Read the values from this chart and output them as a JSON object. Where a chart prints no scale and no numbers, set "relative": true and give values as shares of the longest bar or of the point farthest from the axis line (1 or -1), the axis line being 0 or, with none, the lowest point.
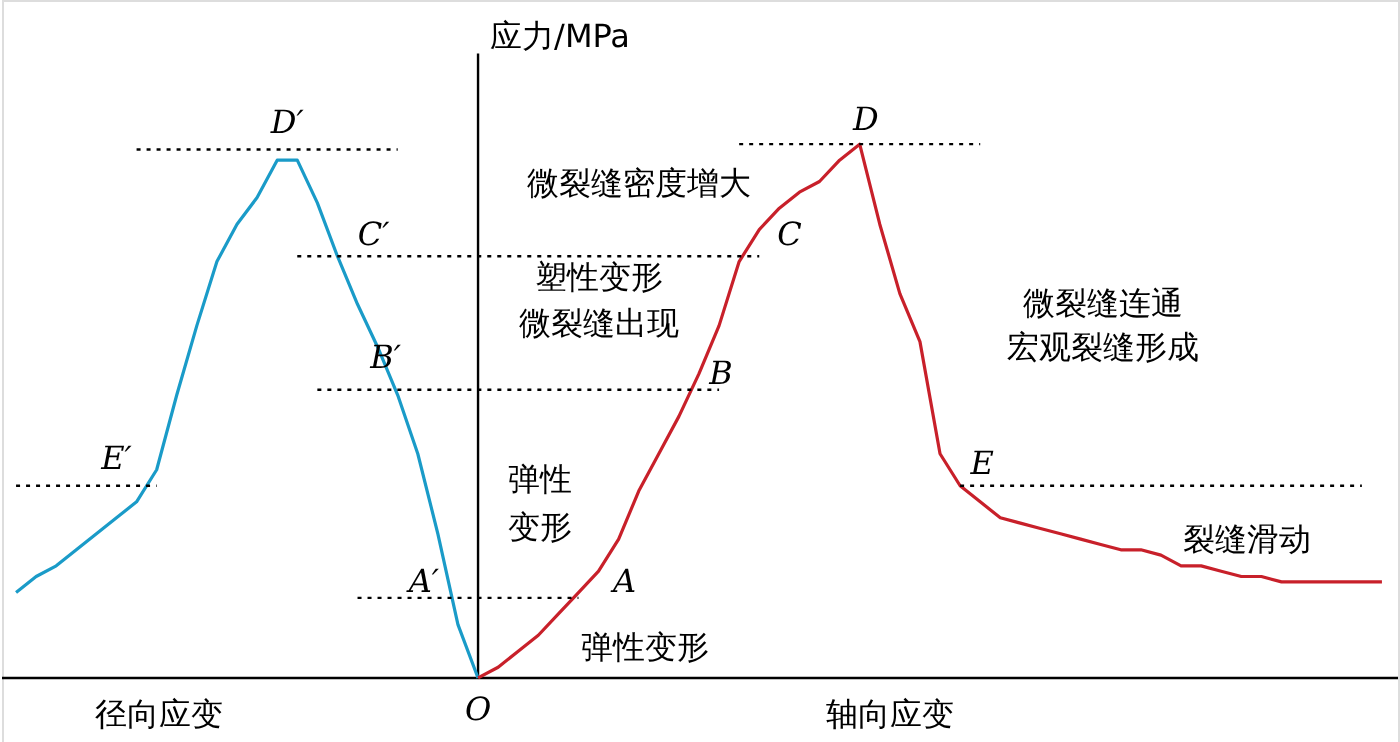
{
  "chart_data": {
    "type": "line",
    "relative": true,
    "ylabel": "应力/MPa",
    "categories": [
      null,
      null,
      null,
      null,
      null,
      null,
      null,
      null,
      null,
      null,
      null,
      null,
      null,
      null,
      null,
      null,
      null,
      null,
      null,
      null,
      null,
      null,
      null,
      null,
      null,
      null,
      null,
      null,
      null,
      null,
      null,
      null,
      null,
      null,
      null,
      null,
      null,
      null,
      null,
      null,
      null,
      null,
      null,
      null,
      null,
      null,
      null,
      null,
      null,
      null,
      null,
      null,
      null,
      null,
      null,
      null,
      null,
      null,
      null,
      null,
      null,
      null,
      null,
      null,
      null,
      null,
      null,
      null,
      null
    ],
    "series": [
      {
        "color": "#1a9bc8",
        "values": [
          0.16,
          0.19,
          0.21,
          0.24,
          0.27,
          0.3,
          0.33,
          0.39,
          0.53,
          0.66,
          0.78,
          0.85,
          0.9,
          0.97,
          0.97,
          0.89,
          0.79,
          0.7,
          0.62,
          0.53,
          0.42,
          0.27,
          0.1,
          0,
          null,
          null,
          null,
          null,
          null,
          null,
          null,
          null,
          null,
          null,
          null,
          null,
          null,
          null,
          null,
          null,
          null,
          null,
          null,
          null,
          null,
          null,
          null,
          null,
          null,
          null,
          null,
          null,
          null,
          null,
          null,
          null,
          null,
          null,
          null,
          null,
          null,
          null,
          null,
          null,
          null,
          null,
          null,
          null,
          null
        ]
      },
      {
        "color": "#c8202a",
        "values": [
          null,
          null,
          null,
          null,
          null,
          null,
          null,
          null,
          null,
          null,
          null,
          null,
          null,
          null,
          null,
          null,
          null,
          null,
          null,
          null,
          null,
          null,
          null,
          0,
          0.02,
          0.05,
          0.08,
          0.12,
          0.16,
          0.2,
          0.26,
          0.35,
          0.42,
          0.49,
          0.57,
          0.66,
          0.78,
          0.84,
          0.88,
          0.91,
          0.93,
          0.97,
          1.0,
          0.85,
          0.72,
          0.63,
          0.42,
          0.36,
          0.33,
          0.3,
          0.29,
          0.28,
          0.27,
          0.26,
          0.25,
          0.24,
          0.24,
          0.23,
          0.21,
          0.21,
          0.2,
          0.19,
          0.19,
          0.18,
          0.18,
          0.18,
          0.18,
          0.18,
          0.18
        ]
      },
      {
        "color": "#000000",
        "line_style": "dotted",
        "values": [
          null,
          null,
          null,
          null,
          null,
          null,
          0.99,
          0.99,
          0.99,
          0.99,
          0.99,
          0.99,
          0.99,
          0.99,
          0.99,
          0.99,
          0.99,
          0.99,
          0.99,
          0.99,
          null,
          null,
          null,
          null,
          null,
          null,
          null,
          null,
          null,
          null,
          null,
          null,
          null,
          null,
          null,
          null,
          null,
          null,
          null,
          null,
          null,
          null,
          null,
          null,
          null,
          null,
          null,
          null,
          null,
          null,
          null,
          null,
          null,
          null,
          null,
          null,
          null,
          null,
          null,
          null,
          null,
          null,
          null,
          null,
          null,
          null,
          null,
          null,
          null
        ]
      },
      {
        "color": "#000000",
        "line_style": "dotted",
        "values": [
          null,
          null,
          null,
          null,
          null,
          null,
          null,
          null,
          null,
          null,
          null,
          null,
          null,
          null,
          null,
          null,
          null,
          null,
          null,
          null,
          null,
          null,
          null,
          null,
          null,
          null,
          null,
          null,
          null,
          null,
          null,
          null,
          null,
          null,
          null,
          null,
          1.0,
          1.0,
          1.0,
          1.0,
          1.0,
          1.0,
          1.0,
          1.0,
          1.0,
          1.0,
          1.0,
          1.0,
          1.0,
          null,
          null,
          null,
          null,
          null,
          null,
          null,
          null,
          null,
          null,
          null,
          null,
          null,
          null,
          null,
          null,
          null,
          null,
          null,
          null
        ]
      },
      {
        "color": "#000000",
        "line_style": "dotted",
        "values": [
          null,
          null,
          null,
          null,
          null,
          null,
          null,
          null,
          null,
          null,
          null,
          null,
          null,
          null,
          0.79,
          0.79,
          0.79,
          0.79,
          0.79,
          0.79,
          0.79,
          0.79,
          0.79,
          0.79,
          0.79,
          0.79,
          0.79,
          0.79,
          0.79,
          0.79,
          0.79,
          0.79,
          0.79,
          0.79,
          0.79,
          0.79,
          0.79,
          0.79,
          null,
          null,
          null,
          null,
          null,
          null,
          null,
          null,
          null,
          null,
          null,
          null,
          null,
          null,
          null,
          null,
          null,
          null,
          null,
          null,
          null,
          null,
          null,
          null,
          null,
          null,
          null,
          null,
          null,
          null,
          null
        ]
      },
      {
        "color": "#000000",
        "line_style": "dotted",
        "values": [
          null,
          null,
          null,
          null,
          null,
          null,
          null,
          null,
          null,
          null,
          null,
          null,
          null,
          null,
          null,
          0.54,
          0.54,
          0.54,
          0.54,
          0.54,
          0.54,
          0.54,
          0.54,
          0.54,
          0.54,
          0.54,
          0.54,
          0.54,
          0.54,
          0.54,
          0.54,
          0.54,
          0.54,
          0.54,
          0.54,
          0.54,
          null,
          null,
          null,
          null,
          null,
          null,
          null,
          null,
          null,
          null,
          null,
          null,
          null,
          null,
          null,
          null,
          null,
          null,
          null,
          null,
          null,
          null,
          null,
          null,
          null,
          null,
          null,
          null,
          null,
          null,
          null,
          null,
          null
        ]
      },
      {
        "color": "#000000",
        "line_style": "dotted",
        "values": [
          0.36,
          0.36,
          0.36,
          0.36,
          0.36,
          0.36,
          0.36,
          0.36,
          null,
          null,
          null,
          null,
          null,
          null,
          null,
          null,
          null,
          null,
          null,
          null,
          null,
          null,
          null,
          null,
          null,
          null,
          null,
          null,
          null,
          null,
          null,
          null,
          null,
          null,
          null,
          null,
          null,
          null,
          null,
          null,
          null,
          null,
          null,
          null,
          null,
          null,
          null,
          null,
          null,
          null,
          null,
          null,
          null,
          null,
          null,
          null,
          null,
          null,
          null,
          null,
          null,
          null,
          null,
          null,
          null,
          null,
          null,
          null,
          null
        ]
      },
      {
        "color": "#000000",
        "line_style": "dotted",
        "values": [
          null,
          null,
          null,
          null,
          null,
          null,
          null,
          null,
          null,
          null,
          null,
          null,
          null,
          null,
          null,
          null,
          null,
          null,
          null,
          null,
          null,
          null,
          null,
          null,
          null,
          null,
          null,
          null,
          null,
          null,
          null,
          null,
          null,
          null,
          null,
          null,
          null,
          null,
          null,
          null,
          null,
          null,
          null,
          null,
          null,
          null,
          null,
          0.36,
          0.36,
          0.36,
          0.36,
          0.36,
          0.36,
          0.36,
          0.36,
          0.36,
          0.36,
          0.36,
          0.36,
          0.36,
          0.36,
          0.36,
          0.36,
          0.36,
          0.36,
          0.36,
          0.36,
          0.36,
          null
        ]
      },
      {
        "color": "#000000",
        "line_style": "dotted",
        "values": [
          null,
          null,
          null,
          null,
          null,
          null,
          null,
          null,
          null,
          null,
          null,
          null,
          null,
          null,
          null,
          null,
          null,
          0.15,
          0.15,
          0.15,
          0.15,
          0.15,
          0.15,
          0.15,
          0.15,
          0.15,
          0.15,
          0.15,
          0.15,
          null,
          null,
          null,
          null,
          null,
          null,
          null,
          null,
          null,
          null,
          null,
          null,
          null,
          null,
          null,
          null,
          null,
          null,
          null,
          null,
          null,
          null,
          null,
          null,
          null,
          null,
          null,
          null,
          null,
          null,
          null,
          null,
          null,
          null,
          null,
          null,
          null,
          null,
          null,
          null
        ]
      }
    ],
    "annotations": [
      "D′",
      "C′",
      "B′",
      "E′",
      "A′",
      "A",
      "B",
      "C",
      "D",
      "E",
      "O",
      "微裂缝密度增大",
      "塑性变形",
      "微裂缝出现",
      "弹性",
      "变形",
      "微裂缝连通",
      "宏观裂缝形成",
      "裂缝滑动",
      "弹性变形",
      "径向应变",
      "轴向应变"
    ]
  }
}
